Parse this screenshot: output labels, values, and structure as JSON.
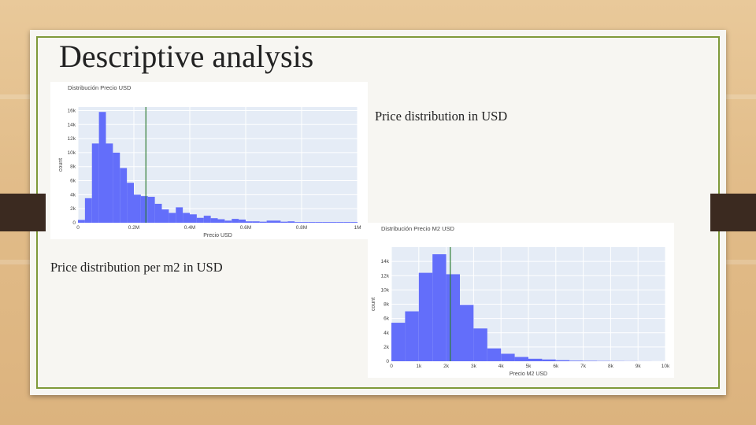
{
  "slide": {
    "title": "Descriptive analysis",
    "caption_price": "Price distribution in USD",
    "caption_m2": "Price distribution per m2 in USD"
  },
  "colors": {
    "bar": "#636efa",
    "plot_bg": "#e5ecf6",
    "marker_line": "#2e7d32",
    "frame": "#7f9a3a"
  },
  "chart_data": [
    {
      "type": "bar",
      "title": "Distribución Precio USD",
      "xlabel": "Precio USD",
      "ylabel": "count",
      "xlim": [
        0,
        1000000
      ],
      "ylim": [
        0,
        16500
      ],
      "bin_width": 25000,
      "bin_start": 0,
      "values": [
        400,
        3500,
        11300,
        15800,
        11300,
        10000,
        7800,
        5700,
        4000,
        3800,
        3700,
        2700,
        1900,
        1400,
        2200,
        1400,
        1200,
        700,
        1000,
        650,
        500,
        300,
        550,
        450,
        200,
        200,
        150,
        300,
        300,
        150,
        200,
        100,
        100,
        100,
        100,
        100,
        100,
        100,
        100,
        100
      ],
      "vline_x": 243000,
      "xticks": [
        0,
        200000,
        400000,
        600000,
        800000,
        1000000
      ],
      "xtick_labels": [
        "0",
        "0.2M",
        "0.4M",
        "0.6M",
        "0.8M",
        "1M"
      ],
      "yticks": [
        0,
        2000,
        4000,
        6000,
        8000,
        10000,
        12000,
        14000,
        16000
      ],
      "ytick_labels": [
        "0",
        "2k",
        "4k",
        "6k",
        "8k",
        "10k",
        "12k",
        "14k",
        "16k"
      ]
    },
    {
      "type": "bar",
      "title": "Distribución Precio M2 USD",
      "xlabel": "Precio M2 USD",
      "ylabel": "count",
      "xlim": [
        0,
        10000
      ],
      "ylim": [
        0,
        16000
      ],
      "bin_width": 500,
      "bin_start": 0,
      "values": [
        5400,
        7000,
        12400,
        15000,
        12200,
        7900,
        4600,
        1800,
        1050,
        600,
        350,
        250,
        150,
        80,
        60,
        40,
        30,
        20,
        10,
        5
      ],
      "vline_x": 2150,
      "xticks": [
        0,
        1000,
        2000,
        3000,
        4000,
        5000,
        6000,
        7000,
        8000,
        9000,
        10000
      ],
      "xtick_labels": [
        "0",
        "1k",
        "2k",
        "3k",
        "4k",
        "5k",
        "6k",
        "7k",
        "8k",
        "9k",
        "10k"
      ],
      "yticks": [
        0,
        2000,
        4000,
        6000,
        8000,
        10000,
        12000,
        14000
      ],
      "ytick_labels": [
        "0",
        "2k",
        "4k",
        "6k",
        "8k",
        "10k",
        "12k",
        "14k"
      ]
    }
  ]
}
